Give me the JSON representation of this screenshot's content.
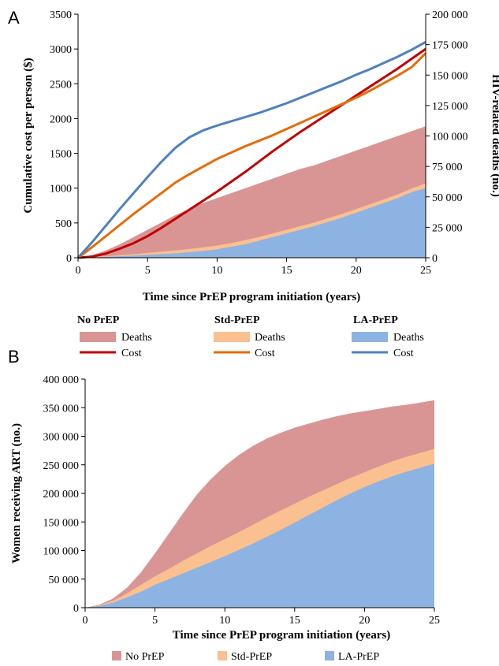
{
  "panels": {
    "a_letter": "A",
    "b_letter": "B"
  },
  "colors": {
    "no_prep_area": "#d99594",
    "std_prep_area": "#fac090",
    "la_prep_area": "#8db3e2",
    "no_prep_line": "#c00000",
    "std_prep_line": "#e46c0a",
    "la_prep_line": "#4f81bd",
    "axis": "#000000",
    "grid": "#d9d9d9"
  },
  "legend_a": {
    "groups": [
      {
        "title": "No PrEP",
        "deaths_label": "Deaths",
        "cost_label": "Cost"
      },
      {
        "title": "Std-PrEP",
        "deaths_label": "Deaths",
        "cost_label": "Cost"
      },
      {
        "title": "LA-PrEP",
        "deaths_label": "Deaths",
        "cost_label": "Cost"
      }
    ]
  },
  "legend_b": {
    "items": [
      "No PrEP",
      "Std-PrEP",
      "LA-PrEP"
    ]
  },
  "chart_data": [
    {
      "type": "area",
      "panel": "A",
      "xlabel": "Time since PrEP program initiation (years)",
      "ylabel": "Cumulative cost  per person ($)",
      "ylabel_right": "HIV-related deaths (no.)",
      "xlim": [
        0,
        25
      ],
      "ylim": [
        0,
        3500
      ],
      "ylim_right": [
        0,
        200000
      ],
      "x_ticks": [
        "0",
        "5",
        "10",
        "15",
        "20",
        "25"
      ],
      "y_ticks": [
        "0",
        "500",
        "1000",
        "1500",
        "2000",
        "2500",
        "3000",
        "3500"
      ],
      "y_ticks_right": [
        "0",
        "25 000",
        "50 000",
        "75 000",
        "100 000",
        "125 000",
        "150 000",
        "175 000",
        "200 000"
      ],
      "grid": false,
      "legend_position": "bottom",
      "x": [
        0,
        1,
        2,
        3,
        4,
        5,
        6,
        7,
        8,
        9,
        10,
        11,
        12,
        13,
        14,
        15,
        16,
        17,
        18,
        19,
        20,
        21,
        22,
        23,
        24,
        25
      ],
      "series": [
        {
          "name": "No PrEP Deaths",
          "axis": "right",
          "kind": "area",
          "values": [
            0,
            2000,
            6000,
            11000,
            17000,
            23000,
            29000,
            35000,
            40000,
            45000,
            49000,
            53000,
            57000,
            61000,
            65000,
            69000,
            73000,
            76000,
            80000,
            84000,
            88000,
            92000,
            96000,
            100000,
            104000,
            108000
          ]
        },
        {
          "name": "Std-PrEP Deaths",
          "axis": "right",
          "kind": "area",
          "values": [
            0,
            500,
            1200,
            2000,
            3000,
            4000,
            5000,
            6000,
            7200,
            8500,
            10000,
            12000,
            14500,
            17000,
            20000,
            23000,
            26000,
            29000,
            32500,
            36000,
            40000,
            44000,
            48000,
            52000,
            57000,
            61000
          ]
        },
        {
          "name": "LA-PrEP Deaths",
          "axis": "right",
          "kind": "area",
          "values": [
            0,
            300,
            700,
            1200,
            1800,
            2400,
            3000,
            3600,
            4500,
            5500,
            7000,
            9000,
            11000,
            14000,
            17000,
            20000,
            23000,
            26000,
            29500,
            33000,
            37000,
            41000,
            45000,
            49000,
            54000,
            57000
          ]
        },
        {
          "name": "No PrEP Cost",
          "axis": "left",
          "kind": "line",
          "values": [
            0,
            15,
            60,
            130,
            210,
            310,
            430,
            560,
            690,
            820,
            950,
            1090,
            1230,
            1380,
            1530,
            1670,
            1810,
            1940,
            2070,
            2200,
            2330,
            2460,
            2590,
            2720,
            2860,
            3000
          ]
        },
        {
          "name": "Std-PrEP Cost",
          "axis": "left",
          "kind": "line",
          "values": [
            0,
            150,
            310,
            470,
            630,
            780,
            930,
            1080,
            1200,
            1310,
            1420,
            1510,
            1600,
            1680,
            1760,
            1850,
            1940,
            2030,
            2120,
            2210,
            2300,
            2400,
            2510,
            2620,
            2740,
            2940
          ]
        },
        {
          "name": "LA-PrEP Cost",
          "axis": "left",
          "kind": "line",
          "values": [
            0,
            220,
            460,
            700,
            930,
            1160,
            1380,
            1580,
            1730,
            1830,
            1900,
            1960,
            2020,
            2080,
            2150,
            2220,
            2300,
            2380,
            2460,
            2540,
            2630,
            2710,
            2800,
            2890,
            2990,
            3100
          ]
        }
      ]
    },
    {
      "type": "area",
      "panel": "B",
      "xlabel": "Time since PrEP program initiation (years)",
      "ylabel": "Women receiving ART (no.)",
      "xlim": [
        0,
        25
      ],
      "ylim": [
        0,
        400000
      ],
      "x_ticks": [
        "0",
        "5",
        "10",
        "15",
        "20",
        "25"
      ],
      "y_ticks": [
        "0",
        "50 000",
        "100 000",
        "150 000",
        "200 000",
        "250 000",
        "300 000",
        "350 000",
        "400 000"
      ],
      "grid": false,
      "legend_position": "bottom",
      "x": [
        0,
        1,
        2,
        3,
        4,
        5,
        6,
        7,
        8,
        9,
        10,
        11,
        12,
        13,
        14,
        15,
        16,
        17,
        18,
        19,
        20,
        21,
        22,
        23,
        24,
        25
      ],
      "series": [
        {
          "name": "No PrEP",
          "values": [
            0,
            5000,
            16000,
            35000,
            62000,
            95000,
            130000,
            165000,
            198000,
            225000,
            248000,
            267000,
            283000,
            296000,
            306000,
            315000,
            322000,
            329000,
            335000,
            340000,
            344000,
            348000,
            352000,
            355000,
            359000,
            363000
          ]
        },
        {
          "name": "Std-PrEP",
          "values": [
            0,
            4000,
            12000,
            25000,
            40000,
            55000,
            68000,
            82000,
            95000,
            108000,
            120000,
            132000,
            145000,
            158000,
            170000,
            182000,
            194000,
            205000,
            216000,
            227000,
            237000,
            247000,
            256000,
            264000,
            271000,
            278000
          ]
        },
        {
          "name": "LA-PrEP",
          "values": [
            0,
            3000,
            9000,
            18000,
            28000,
            40000,
            50000,
            60000,
            70000,
            80000,
            90000,
            101000,
            112000,
            124000,
            136000,
            149000,
            162000,
            175000,
            188000,
            200000,
            211000,
            221000,
            230000,
            238000,
            245000,
            252000
          ]
        }
      ]
    }
  ]
}
